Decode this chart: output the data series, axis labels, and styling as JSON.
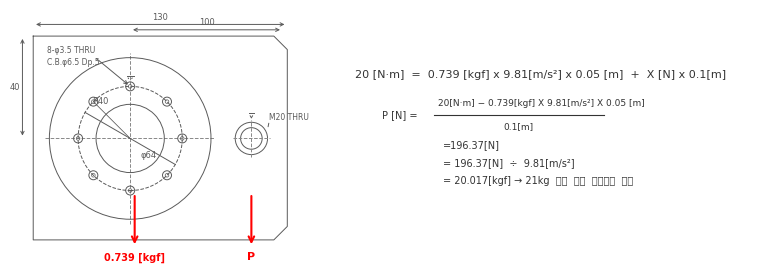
{
  "bg_color": "#ffffff",
  "drawing_color": "#5a5a5a",
  "red_color": "#ff0000",
  "text_color": "#333333",
  "line_color": "#888888",
  "eq_line1": "20 [N·m]  =  0.739 [kgf] x 9.81[m/s²] x 0.05 [m]  +  X [N] x 0.1[m]",
  "eq_numerator": "20[N·m] − 0.739[kgf] X 9.81[m/s²] X 0.05 [m]",
  "eq_denominator": "0.1[m]",
  "eq_p_label": "P [N] =",
  "eq_result1": "=196.37[N]",
  "eq_result2": "= 196.37[N]  ÷  9.81[m/s²]",
  "eq_result3": "= 20.017[kgf] → 21kg  지그  주가  부작하여  시험",
  "label_0739": "0.739 [kgf]",
  "label_P": "P",
  "dim_130": "130",
  "dim_100": "100",
  "dim_40": "40",
  "dim_phi64": "φ64",
  "dim_R40": "R40",
  "dim_holes": "8-φ3.5 THRU\nC.B.φ6.5 Dp.5",
  "dim_M20": "M20 THRU"
}
